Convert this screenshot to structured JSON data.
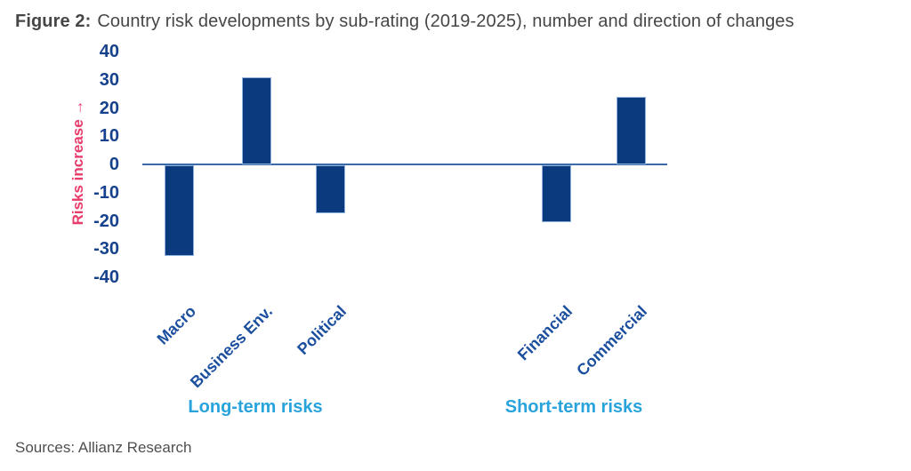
{
  "figure": {
    "title_prefix": "Figure 2:",
    "title_text": "Country risk developments by sub-rating (2019-2025), number and direction of changes",
    "source": "Sources: Allianz Research"
  },
  "chart_data": {
    "type": "bar",
    "title": "Country risk developments by sub-rating (2019-2025), number and direction of changes",
    "categories": [
      "Macro",
      "Business Env.",
      "Political",
      "Financial",
      "Commercial"
    ],
    "values": [
      -32,
      31,
      -17,
      -20,
      24
    ],
    "groups": [
      {
        "label": "Long-term risks",
        "category_indexes": [
          0,
          1,
          2
        ]
      },
      {
        "label": "Short-term risks",
        "category_indexes": [
          3,
          4
        ]
      }
    ],
    "ylabel": "Risks increase →",
    "yticks": [
      40,
      30,
      20,
      10,
      0,
      -10,
      -20,
      -30,
      -40
    ],
    "ylim": [
      -40,
      40
    ],
    "grid": false,
    "legend": "none",
    "colors": {
      "bar": "#0b3a7e",
      "bar_edge": "#8fb3dd",
      "axis_line": "#3a6aa8",
      "tick_label": "#16418c",
      "category_label": "#1c4f9e",
      "group_label": "#29a3dc",
      "ylabel": "#e83c6b",
      "title": "#464646",
      "source": "#4f4f4f"
    }
  }
}
